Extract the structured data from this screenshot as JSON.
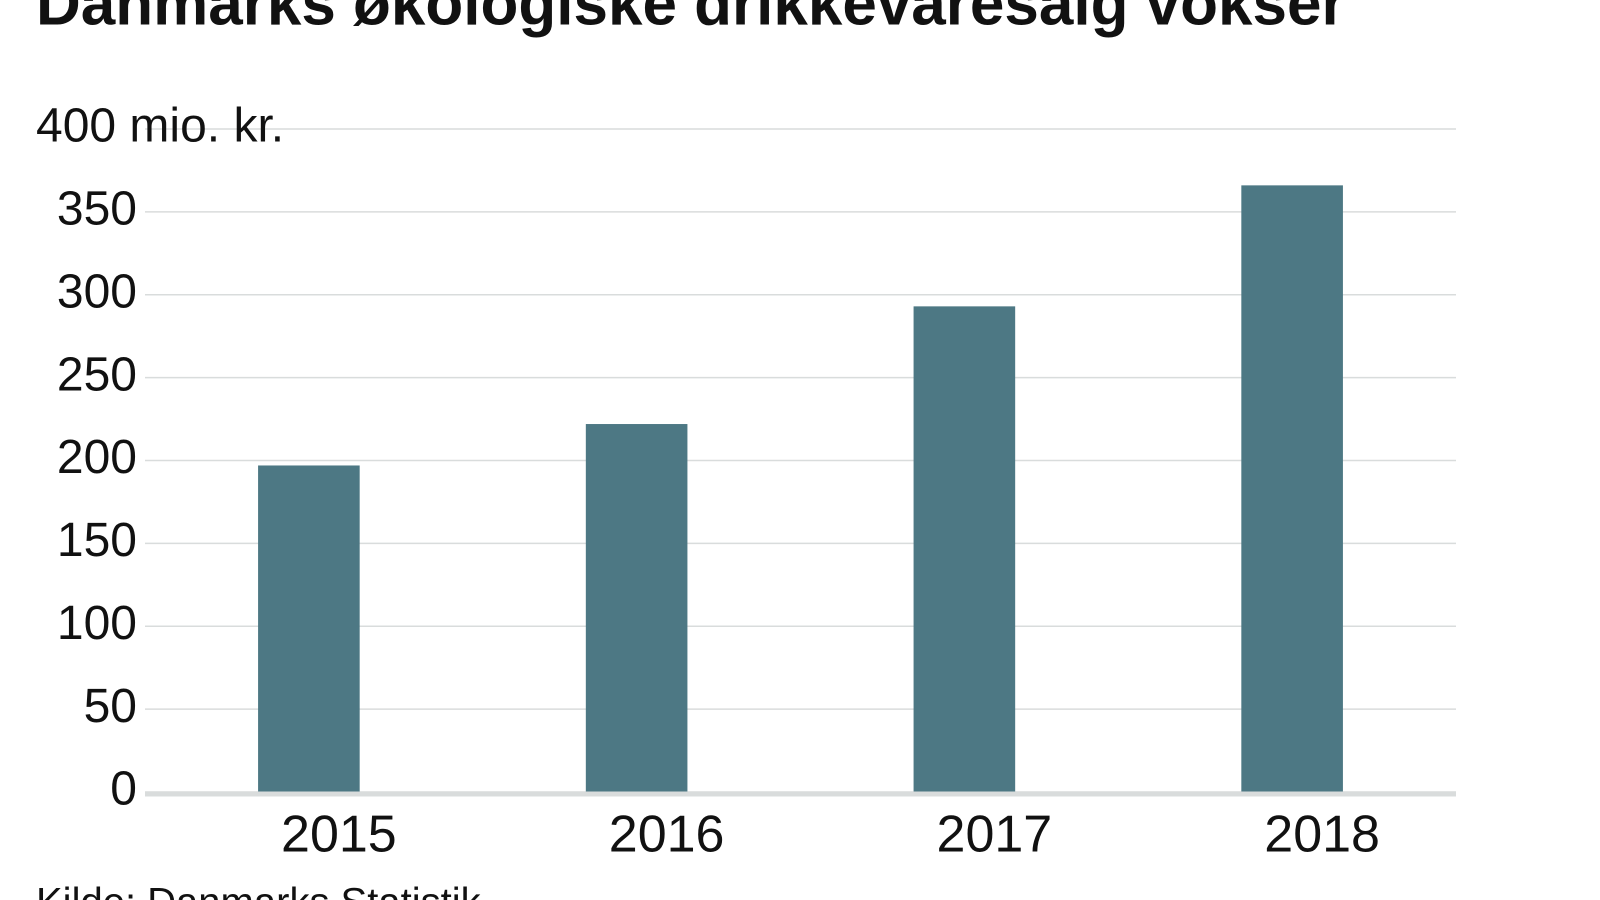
{
  "chart_data": {
    "type": "bar",
    "title": "Danmarks økologiske drikkevaresalg vokser",
    "source": "Kilde: Danmarks Statistik",
    "categories": [
      "2015",
      "2016",
      "2017",
      "2018"
    ],
    "values": [
      197,
      222,
      293,
      366
    ],
    "color": "#4d7884",
    "ylim": [
      0,
      400
    ],
    "yticks": [
      0,
      50,
      100,
      150,
      200,
      250,
      300,
      350,
      {
        "value": 400,
        "label": "400 mio. kr."
      }
    ],
    "grid": true
  }
}
